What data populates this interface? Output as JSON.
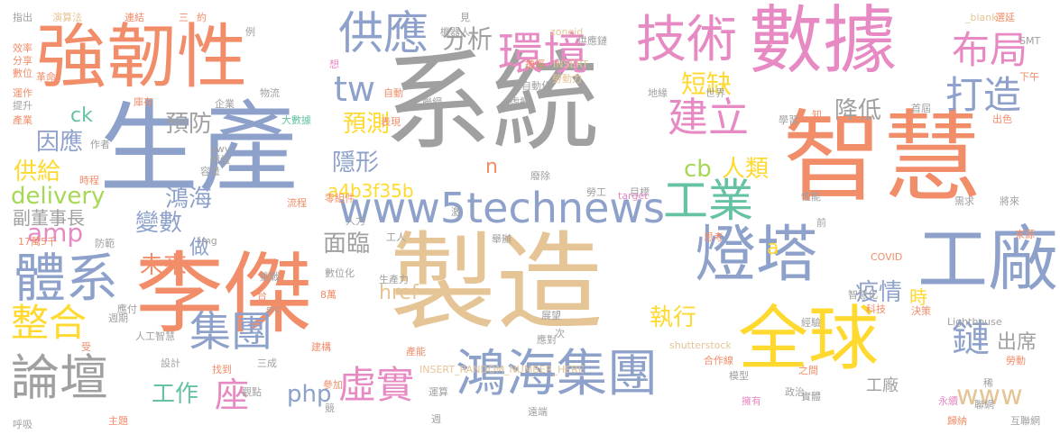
{
  "palette": {
    "gray": "#a0a0a0",
    "orange": "#f28d6a",
    "blue": "#8ea1cb",
    "tan": "#e5c495",
    "pink": "#e78ac3",
    "green": "#66c2a5",
    "yellow": "#ffd92f",
    "lime": "#a6d854"
  },
  "words": [
    {
      "text": "系統",
      "color": "gray"
    },
    {
      "text": "製造",
      "color": "tan"
    },
    {
      "text": "生產",
      "color": "blue"
    },
    {
      "text": "智慧",
      "color": "orange"
    },
    {
      "text": "數據",
      "color": "pink"
    },
    {
      "text": "強韌性",
      "color": "orange"
    },
    {
      "text": "李傑",
      "color": "orange"
    },
    {
      "text": "全球",
      "color": "yellow"
    },
    {
      "text": "工廠",
      "color": "blue"
    },
    {
      "text": "燈塔",
      "color": "blue"
    },
    {
      "text": "鴻海集團",
      "color": "blue"
    },
    {
      "text": "技術",
      "color": "pink"
    },
    {
      "text": "供應",
      "color": "blue"
    },
    {
      "text": "環境",
      "color": "pink"
    },
    {
      "text": "體系",
      "color": "blue"
    },
    {
      "text": "論壇",
      "color": "gray"
    },
    {
      "text": "www5technews",
      "color": "blue"
    },
    {
      "text": "工業",
      "color": "green"
    },
    {
      "text": "建立",
      "color": "pink"
    },
    {
      "text": "布局",
      "color": "pink"
    },
    {
      "text": "打造",
      "color": "blue"
    },
    {
      "text": "tw",
      "color": "blue"
    },
    {
      "text": "集團",
      "color": "blue"
    },
    {
      "text": "虛實",
      "color": "pink"
    },
    {
      "text": "整合",
      "color": "yellow"
    },
    {
      "text": "鏈",
      "color": "blue"
    },
    {
      "text": "www",
      "color": "tan"
    },
    {
      "text": "座",
      "color": "pink"
    },
    {
      "text": "分析",
      "color": "gray"
    },
    {
      "text": "短缺",
      "color": "yellow"
    },
    {
      "text": "預測",
      "color": "yellow"
    },
    {
      "text": "預防",
      "color": "gray"
    },
    {
      "text": "因應",
      "color": "blue"
    },
    {
      "text": "降低",
      "color": "gray"
    },
    {
      "text": "隱形",
      "color": "blue"
    },
    {
      "text": "供給",
      "color": "yellow"
    },
    {
      "text": "delivery",
      "color": "lime"
    },
    {
      "text": "鴻海",
      "color": "blue"
    },
    {
      "text": "cb",
      "color": "lime"
    },
    {
      "text": "人類",
      "color": "yellow"
    },
    {
      "text": "變數",
      "color": "blue"
    },
    {
      "text": "副董事長",
      "color": "gray"
    },
    {
      "text": "amp",
      "color": "pink"
    },
    {
      "text": "面臨",
      "color": "gray"
    },
    {
      "text": "未來",
      "color": "orange"
    },
    {
      "text": "做",
      "color": "blue"
    },
    {
      "text": "疫情",
      "color": "blue"
    },
    {
      "text": "執行",
      "color": "yellow"
    },
    {
      "text": "出席",
      "color": "gray"
    },
    {
      "text": "工作",
      "color": "green"
    },
    {
      "text": "php",
      "color": "blue"
    },
    {
      "text": "a4b3f35b",
      "color": "yellow"
    },
    {
      "text": "href",
      "color": "tan"
    },
    {
      "text": "時",
      "color": "yellow"
    },
    {
      "text": "工廠",
      "color": "gray"
    },
    {
      "text": "ck",
      "color": "green"
    },
    {
      "text": "n",
      "color": "orange"
    },
    {
      "text": "a",
      "color": "yellow"
    },
    {
      "text": "指出",
      "color": "gray"
    },
    {
      "text": "演算法",
      "color": "tan"
    },
    {
      "text": "連結",
      "color": "orange"
    },
    {
      "text": "三",
      "color": "orange"
    },
    {
      "text": "約",
      "color": "orange"
    },
    {
      "text": "見",
      "color": "gray"
    },
    {
      "text": "機器人",
      "color": "gray"
    },
    {
      "text": "zoneid",
      "color": "tan"
    },
    {
      "text": "供應鏈",
      "color": "gray"
    },
    {
      "text": "INSERT",
      "color": "tan"
    },
    {
      "text": "_blank",
      "color": "tan"
    },
    {
      "text": "SMT",
      "color": "gray"
    },
    {
      "text": "選延",
      "color": "orange"
    },
    {
      "text": "效率",
      "color": "orange"
    },
    {
      "text": "分享",
      "color": "orange"
    },
    {
      "text": "數位",
      "color": "orange"
    },
    {
      "text": "革命",
      "color": "orange"
    },
    {
      "text": "運作",
      "color": "orange"
    },
    {
      "text": "提升",
      "color": "gray"
    },
    {
      "text": "產業",
      "color": "orange"
    },
    {
      "text": "例",
      "color": "gray"
    },
    {
      "text": "想",
      "color": "pink"
    },
    {
      "text": "捷徑",
      "color": "orange"
    },
    {
      "text": "勞動力",
      "color": "tan"
    },
    {
      "text": "自動化",
      "color": "gray"
    },
    {
      "text": "下午",
      "color": "orange"
    },
    {
      "text": "自動",
      "color": "orange"
    },
    {
      "text": "聯網",
      "color": "gray"
    },
    {
      "text": "虛擬",
      "color": "gray"
    },
    {
      "text": "地緣",
      "color": "gray"
    },
    {
      "text": "世界",
      "color": "gray"
    },
    {
      "text": "物流",
      "color": "gray"
    },
    {
      "text": "企業",
      "color": "gray"
    },
    {
      "text": "庫存",
      "color": "orange"
    },
    {
      "text": "大數據",
      "color": "green"
    },
    {
      "text": "表現",
      "color": "orange"
    },
    {
      "text": "學習",
      "color": "gray"
    },
    {
      "text": "首屆",
      "color": "gray"
    },
    {
      "text": "出色",
      "color": "orange"
    },
    {
      "text": "作者",
      "color": "gray"
    },
    {
      "text": "awv",
      "color": "gray"
    },
    {
      "text": "價值",
      "color": "gray"
    },
    {
      "text": "容量",
      "color": "gray"
    },
    {
      "text": "時程",
      "color": "orange"
    },
    {
      "text": "廢除",
      "color": "gray"
    },
    {
      "text": "勞工",
      "color": "gray"
    },
    {
      "text": "目標",
      "color": "gray"
    },
    {
      "text": "target",
      "color": "pink"
    },
    {
      "text": "性能",
      "color": "gray"
    },
    {
      "text": "需求",
      "color": "gray"
    },
    {
      "text": "將來",
      "color": "gray"
    },
    {
      "text": "零組件",
      "color": "orange"
    },
    {
      "text": "流程",
      "color": "orange"
    },
    {
      "text": "人力",
      "color": "gray"
    },
    {
      "text": "工人",
      "color": "gray"
    },
    {
      "text": "舉辦",
      "color": "gray"
    },
    {
      "text": "思考",
      "color": "orange"
    },
    {
      "text": "來源",
      "color": "orange"
    },
    {
      "text": "17萬5千",
      "color": "orange"
    },
    {
      "text": "防範",
      "color": "gray"
    },
    {
      "text": "img",
      "color": "gray"
    },
    {
      "text": "COVID",
      "color": "orange"
    },
    {
      "text": "挑戰",
      "color": "gray"
    },
    {
      "text": "數位化",
      "color": "gray"
    },
    {
      "text": "智慧化",
      "color": "gray"
    },
    {
      "text": "生產力",
      "color": "gray"
    },
    {
      "text": "src",
      "color": "gray"
    },
    {
      "text": "科技",
      "color": "orange"
    },
    {
      "text": "人工智慧",
      "color": "gray"
    },
    {
      "text": "決策",
      "color": "orange"
    },
    {
      "text": "Lighthouse",
      "color": "gray"
    },
    {
      "text": "展望",
      "color": "gray"
    },
    {
      "text": "經驗",
      "color": "gray"
    },
    {
      "text": "shutterstock",
      "color": "tan"
    },
    {
      "text": "設計",
      "color": "gray"
    },
    {
      "text": "找到",
      "color": "orange"
    },
    {
      "text": "三成",
      "color": "gray"
    },
    {
      "text": "參加",
      "color": "orange"
    },
    {
      "text": "應對",
      "color": "gray"
    },
    {
      "text": "合作線",
      "color": "orange"
    },
    {
      "text": "模型",
      "color": "gray"
    },
    {
      "text": "之間",
      "color": "orange"
    },
    {
      "text": "勞動",
      "color": "orange"
    },
    {
      "text": "觀點",
      "color": "gray"
    },
    {
      "text": "遠端",
      "color": "gray"
    },
    {
      "text": "運算",
      "color": "gray"
    },
    {
      "text": "擁有",
      "color": "pink"
    },
    {
      "text": "政治",
      "color": "gray"
    },
    {
      "text": "永續",
      "color": "pink"
    },
    {
      "text": "聯網",
      "color": "gray"
    },
    {
      "text": "呼吸",
      "color": "gray"
    },
    {
      "text": "主題",
      "color": "orange"
    },
    {
      "text": "INSERT_RANDOM_NUMBER_HERE",
      "color": "tan"
    },
    {
      "text": "歸納",
      "color": "orange"
    },
    {
      "text": "互聯網",
      "color": "gray"
    },
    {
      "text": "週期",
      "color": "gray"
    },
    {
      "text": "8萬",
      "color": "orange"
    },
    {
      "text": "台",
      "color": "orange"
    },
    {
      "text": "受",
      "color": "orange"
    },
    {
      "text": "建構",
      "color": "orange"
    },
    {
      "text": "產能",
      "color": "orange"
    },
    {
      "text": "激",
      "color": "gray"
    },
    {
      "text": "次",
      "color": "gray"
    },
    {
      "text": "稀",
      "color": "gray"
    },
    {
      "text": "知",
      "color": "orange"
    },
    {
      "text": "前",
      "color": "gray"
    },
    {
      "text": "競",
      "color": "gray"
    },
    {
      "text": "實體",
      "color": "gray"
    },
    {
      "text": "週",
      "color": "gray"
    },
    {
      "text": "應付",
      "color": "gray"
    },
    {
      "text": "末",
      "color": "gray"
    }
  ]
}
